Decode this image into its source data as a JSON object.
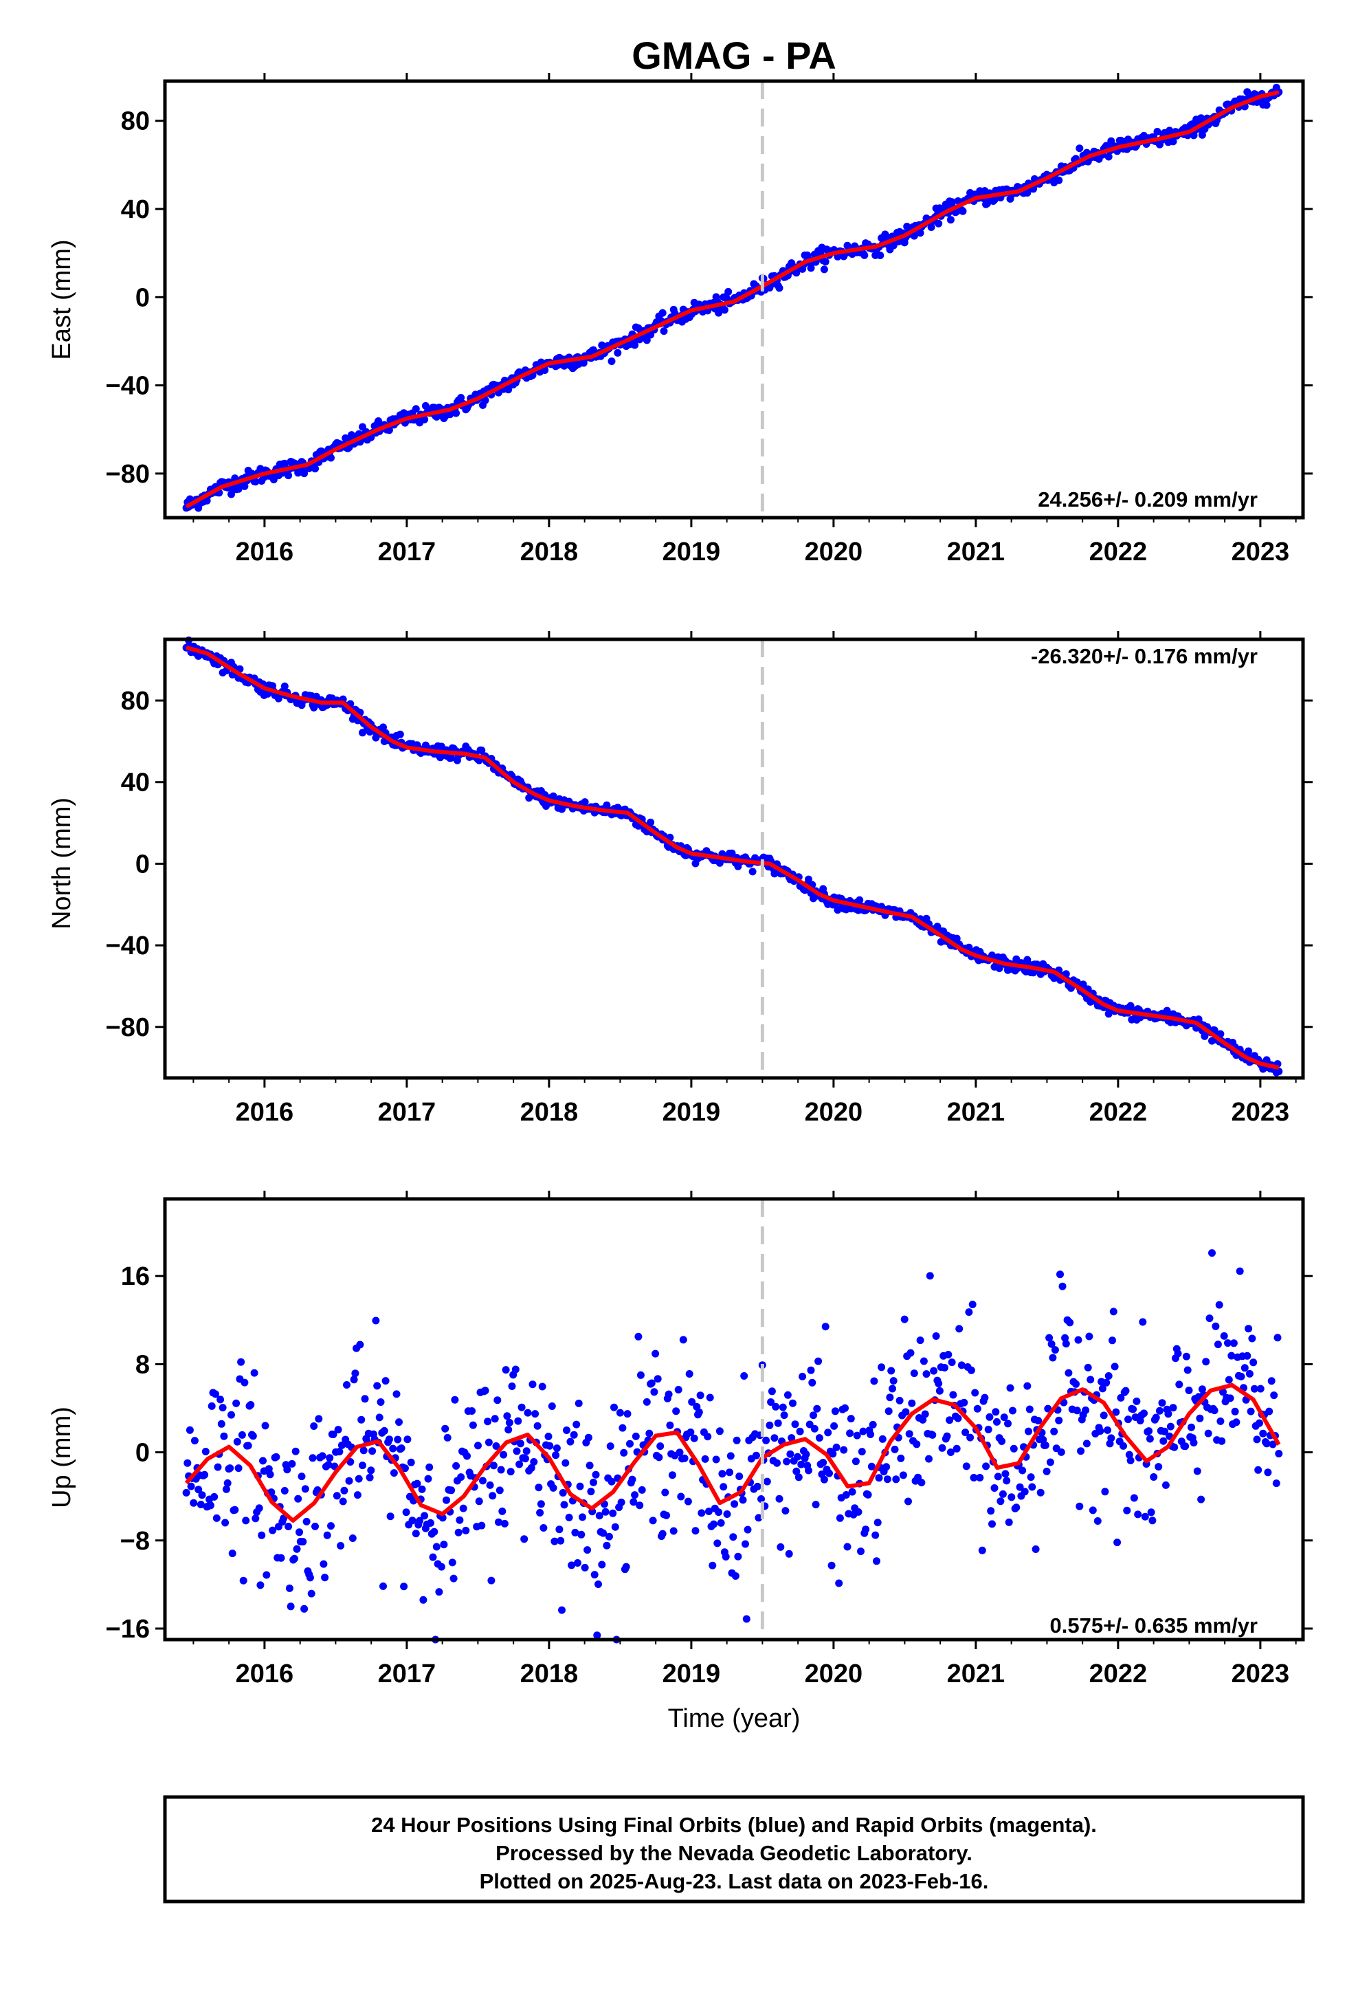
{
  "chart_data": {
    "type": "scatter",
    "title": "GMAG - PA",
    "xlabel": "Time (year)",
    "x_ticks": [
      2016,
      2017,
      2018,
      2019,
      2020,
      2021,
      2022,
      2023
    ],
    "xlim": [
      2015.3,
      2023.3
    ],
    "reference_line_x": 2019.5,
    "colors": {
      "data": "#0000ff",
      "model": "#ff0000",
      "reference": "#c8c8c8"
    },
    "panels": [
      {
        "ylabel": "East (mm)",
        "ylim": [
          -100,
          98
        ],
        "y_ticks": [
          -80,
          -40,
          0,
          40,
          80
        ],
        "rate_label": "24.256+/- 0.209 mm/yr",
        "rate_position": "bottom-right",
        "series": [
          {
            "x": [
              2015.45,
              2015.7,
              2016.0,
              2016.3,
              2016.5,
              2016.8,
              2017.0,
              2017.3,
              2017.5,
              2017.8,
              2018.0,
              2018.3,
              2018.5,
              2018.8,
              2019.0,
              2019.3,
              2019.5,
              2019.8,
              2020.0,
              2020.3,
              2020.5,
              2020.8,
              2021.0,
              2021.3,
              2021.5,
              2021.8,
              2022.0,
              2022.3,
              2022.5,
              2022.8,
              2023.0,
              2023.13
            ],
            "y": [
              -95,
              -86,
              -80,
              -76,
              -69,
              -60,
              -55,
              -51,
              -46,
              -36,
              -30,
              -27,
              -21,
              -12,
              -6,
              -2,
              5,
              16,
              20,
              23,
              28,
              39,
              45,
              48,
              54,
              64,
              68,
              72,
              75,
              86,
              91,
              93
            ]
          }
        ]
      },
      {
        "ylabel": "North (mm)",
        "ylim": [
          -105,
          110
        ],
        "y_ticks": [
          -80,
          -40,
          0,
          40,
          80
        ],
        "rate_label": "-26.320+/- 0.176 mm/yr",
        "rate_position": "top-right",
        "series": [
          {
            "x": [
              2015.45,
              2015.6,
              2015.8,
              2016.0,
              2016.2,
              2016.4,
              2016.55,
              2016.75,
              2016.9,
              2017.0,
              2017.2,
              2017.4,
              2017.55,
              2017.75,
              2017.9,
              2018.0,
              2018.2,
              2018.4,
              2018.55,
              2018.75,
              2018.9,
              2019.0,
              2019.2,
              2019.4,
              2019.55,
              2019.75,
              2019.9,
              2020.0,
              2020.2,
              2020.4,
              2020.55,
              2020.75,
              2020.9,
              2021.0,
              2021.2,
              2021.4,
              2021.55,
              2021.75,
              2021.9,
              2022.0,
              2022.2,
              2022.4,
              2022.55,
              2022.75,
              2022.9,
              2023.0,
              2023.13
            ],
            "y": [
              106,
              103,
              94,
              86,
              82,
              79,
              79,
              67,
              60,
              57,
              55,
              54,
              52,
              40,
              34,
              31,
              28,
              26,
              25,
              15,
              8,
              5,
              3,
              1,
              0,
              -8,
              -15,
              -18,
              -21,
              -24,
              -26,
              -35,
              -42,
              -45,
              -49,
              -51,
              -53,
              -62,
              -69,
              -72,
              -74,
              -76,
              -78,
              -88,
              -95,
              -98,
              -100
            ]
          }
        ]
      },
      {
        "ylabel": "Up (mm)",
        "ylim": [
          -17,
          23
        ],
        "y_ticks": [
          -16,
          -8,
          0,
          8,
          16
        ],
        "rate_label": "0.575+/- 0.635 mm/yr",
        "rate_position": "bottom-right",
        "series": [
          {
            "x": [
              2015.45,
              2015.6,
              2015.75,
              2015.9,
              2016.05,
              2016.2,
              2016.35,
              2016.5,
              2016.65,
              2016.8,
              2016.95,
              2017.1,
              2017.25,
              2017.4,
              2017.55,
              2017.7,
              2017.85,
              2018.0,
              2018.15,
              2018.3,
              2018.45,
              2018.6,
              2018.75,
              2018.9,
              2019.05,
              2019.2,
              2019.35,
              2019.5,
              2019.65,
              2019.8,
              2019.95,
              2020.1,
              2020.25,
              2020.4,
              2020.55,
              2020.7,
              2020.85,
              2021.0,
              2021.15,
              2021.3,
              2021.45,
              2021.6,
              2021.75,
              2021.9,
              2022.05,
              2022.2,
              2022.35,
              2022.5,
              2022.65,
              2022.8,
              2022.95,
              2023.13
            ],
            "y": [
              -2.8,
              -0.6,
              0.5,
              -1.2,
              -4.5,
              -6.2,
              -4.6,
              -1.8,
              0.5,
              1.0,
              -1.5,
              -4.8,
              -5.6,
              -4.0,
              -1.3,
              0.9,
              1.6,
              -0.5,
              -3.8,
              -5.1,
              -3.6,
              -0.9,
              1.5,
              1.8,
              -1.1,
              -4.6,
              -3.6,
              -0.5,
              0.7,
              1.2,
              -0.2,
              -3.1,
              -2.8,
              1.0,
              3.5,
              4.8,
              4.3,
              2.2,
              -1.4,
              -1.0,
              2.2,
              4.9,
              5.7,
              4.5,
              1.5,
              -0.8,
              0.5,
              3.5,
              5.6,
              6.1,
              4.8,
              0.7
            ]
          }
        ]
      }
    ]
  },
  "footer": {
    "line1": "24 Hour Positions Using Final Orbits (blue) and Rapid Orbits (magenta).",
    "line2": "Processed by the Nevada Geodetic Laboratory.",
    "line3": "Plotted on 2025-Aug-23. Last data on 2023-Feb-16."
  }
}
